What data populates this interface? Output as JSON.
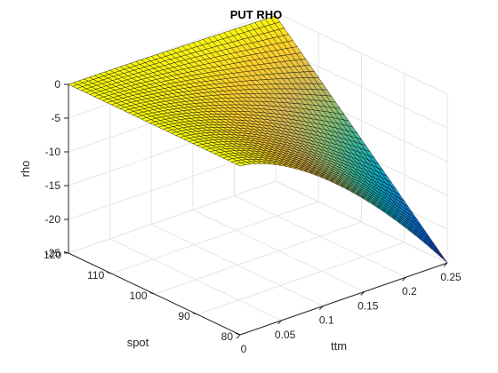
{
  "chart_data": {
    "type": "surface",
    "title": "PUT RHO",
    "xlabel": "ttm",
    "ylabel": "spot",
    "zlabel": "rho",
    "xlim": [
      0,
      0.25
    ],
    "ylim": [
      80,
      120
    ],
    "zlim": [
      -25,
      0
    ],
    "xticks": [
      0,
      0.05,
      0.1,
      0.15,
      0.2,
      0.25
    ],
    "xtick_labels": [
      "0",
      "0.05",
      "0.1",
      "0.15",
      "0.2",
      "0.25"
    ],
    "yticks": [
      80,
      90,
      100,
      110,
      120
    ],
    "ytick_labels": [
      "80",
      "90",
      "100",
      "110",
      "120"
    ],
    "zticks": [
      -25,
      -20,
      -15,
      -10,
      -5,
      0
    ],
    "ztick_labels": [
      "-25",
      "-20",
      "-15",
      "-10",
      "-5",
      "0"
    ],
    "grid": true,
    "colormap": "parula",
    "colors": [
      "#352a87",
      "#0363e1",
      "#1485d4",
      "#06a7c6",
      "#38b99e",
      "#92bf73",
      "#d9ba56",
      "#fcce2e",
      "#f9fb0e"
    ],
    "edge_color": "#000000",
    "surface_grid": {
      "ttm_steps": 40,
      "spot_steps": 40
    },
    "surface_points": [
      {
        "ttm": 0,
        "spot": 120,
        "rho": 0
      },
      {
        "ttm": 0,
        "spot": 80,
        "rho": 0
      },
      {
        "ttm": 0.25,
        "spot": 120,
        "rho": -0.5
      },
      {
        "ttm": 0.25,
        "spot": 100,
        "rho": -12
      },
      {
        "ttm": 0.25,
        "spot": 80,
        "rho": -24.8
      }
    ]
  }
}
